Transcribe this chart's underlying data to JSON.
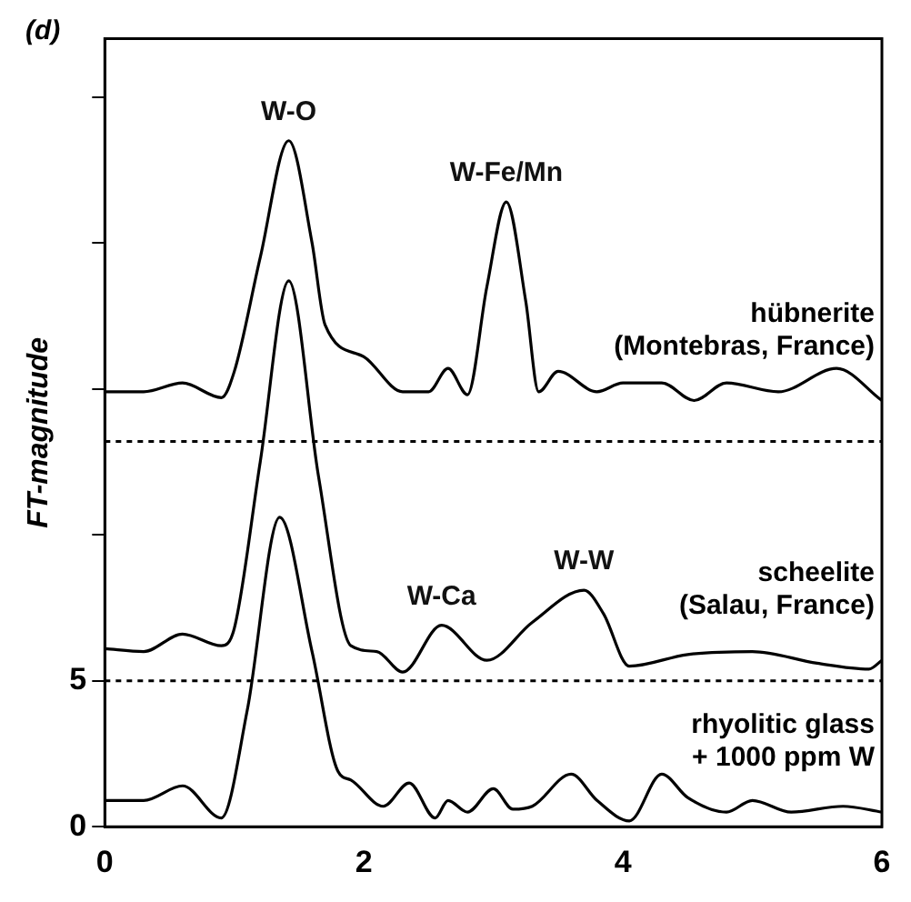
{
  "chart_data": {
    "type": "line",
    "title": "(d)",
    "ylabel": "FT-magnitude",
    "xlim": [
      0,
      6
    ],
    "xticks": [
      0,
      2,
      4,
      6
    ],
    "ylim": [
      0,
      27
    ],
    "yticks": [
      0,
      5,
      {
        "value": 10,
        "label": null
      },
      {
        "value": 15,
        "label": null
      },
      {
        "value": 20,
        "label": null
      },
      {
        "value": 25,
        "label": null
      }
    ],
    "grid": false,
    "legend": false,
    "marker": "none",
    "line_style": "solid",
    "series": [
      {
        "name": "hübnerite\n(Montebras, France)",
        "color": "#000000",
        "x": [
          0,
          0.3,
          0.6,
          0.9,
          1.0,
          1.2,
          1.42,
          1.6,
          1.7,
          2.0,
          2.3,
          2.5,
          2.65,
          2.8,
          2.95,
          3.1,
          3.25,
          3.35,
          3.5,
          3.8,
          4.0,
          4.3,
          4.55,
          4.8,
          5.2,
          5.65,
          6.0
        ],
        "values": [
          14.9,
          14.9,
          15.2,
          14.7,
          15.6,
          19.5,
          23.5,
          20.0,
          17.2,
          16.1,
          14.9,
          14.9,
          15.7,
          14.8,
          18.5,
          21.4,
          18.0,
          14.9,
          15.6,
          14.9,
          15.2,
          15.2,
          14.6,
          15.2,
          14.9,
          15.7,
          14.6
        ]
      },
      {
        "name": "scheelite\n(Salau, France)",
        "color": "#000000",
        "x": [
          0,
          0.3,
          0.6,
          0.9,
          1.0,
          1.2,
          1.42,
          1.65,
          1.9,
          2.1,
          2.3,
          2.6,
          2.95,
          3.3,
          3.7,
          3.85,
          4.05,
          4.5,
          5.0,
          5.5,
          5.9,
          6.0
        ],
        "values": [
          6.1,
          6.0,
          6.6,
          6.2,
          6.8,
          12.5,
          18.7,
          12.0,
          6.2,
          6.0,
          5.3,
          6.9,
          5.7,
          7.0,
          8.1,
          7.3,
          5.5,
          5.9,
          6.0,
          5.6,
          5.4,
          5.7
        ]
      },
      {
        "name": "rhyolitic glass\n+ 1000 ppm W",
        "color": "#000000",
        "x": [
          0,
          0.3,
          0.6,
          0.9,
          1.1,
          1.35,
          1.6,
          1.8,
          1.9,
          2.15,
          2.35,
          2.55,
          2.65,
          2.8,
          3.0,
          3.15,
          3.3,
          3.6,
          3.8,
          4.05,
          4.3,
          4.5,
          4.8,
          5.0,
          5.3,
          5.7,
          6.0
        ],
        "values": [
          0.9,
          0.9,
          1.4,
          0.3,
          4.0,
          10.6,
          6.0,
          1.9,
          1.6,
          0.7,
          1.5,
          0.3,
          0.9,
          0.5,
          1.3,
          0.6,
          0.7,
          1.8,
          0.9,
          0.2,
          1.8,
          1.0,
          0.5,
          0.9,
          0.5,
          0.7,
          0.5
        ]
      }
    ],
    "ref_lines": [
      {
        "axis": "y",
        "value": 13.2,
        "color": "#000000",
        "line_style": "dotted"
      },
      {
        "axis": "y",
        "value": 5,
        "color": "#000000",
        "line_style": "dotted"
      }
    ],
    "annotations": [
      {
        "text": "W-O",
        "x": 1.42,
        "y": 23.5
      },
      {
        "text": "W-Fe/Mn",
        "x": 3.1,
        "y": 21.4
      },
      {
        "text": "W-Ca",
        "x": 2.6,
        "y": 6.9
      },
      {
        "text": "W-W",
        "x": 3.7,
        "y": 8.1
      }
    ]
  }
}
